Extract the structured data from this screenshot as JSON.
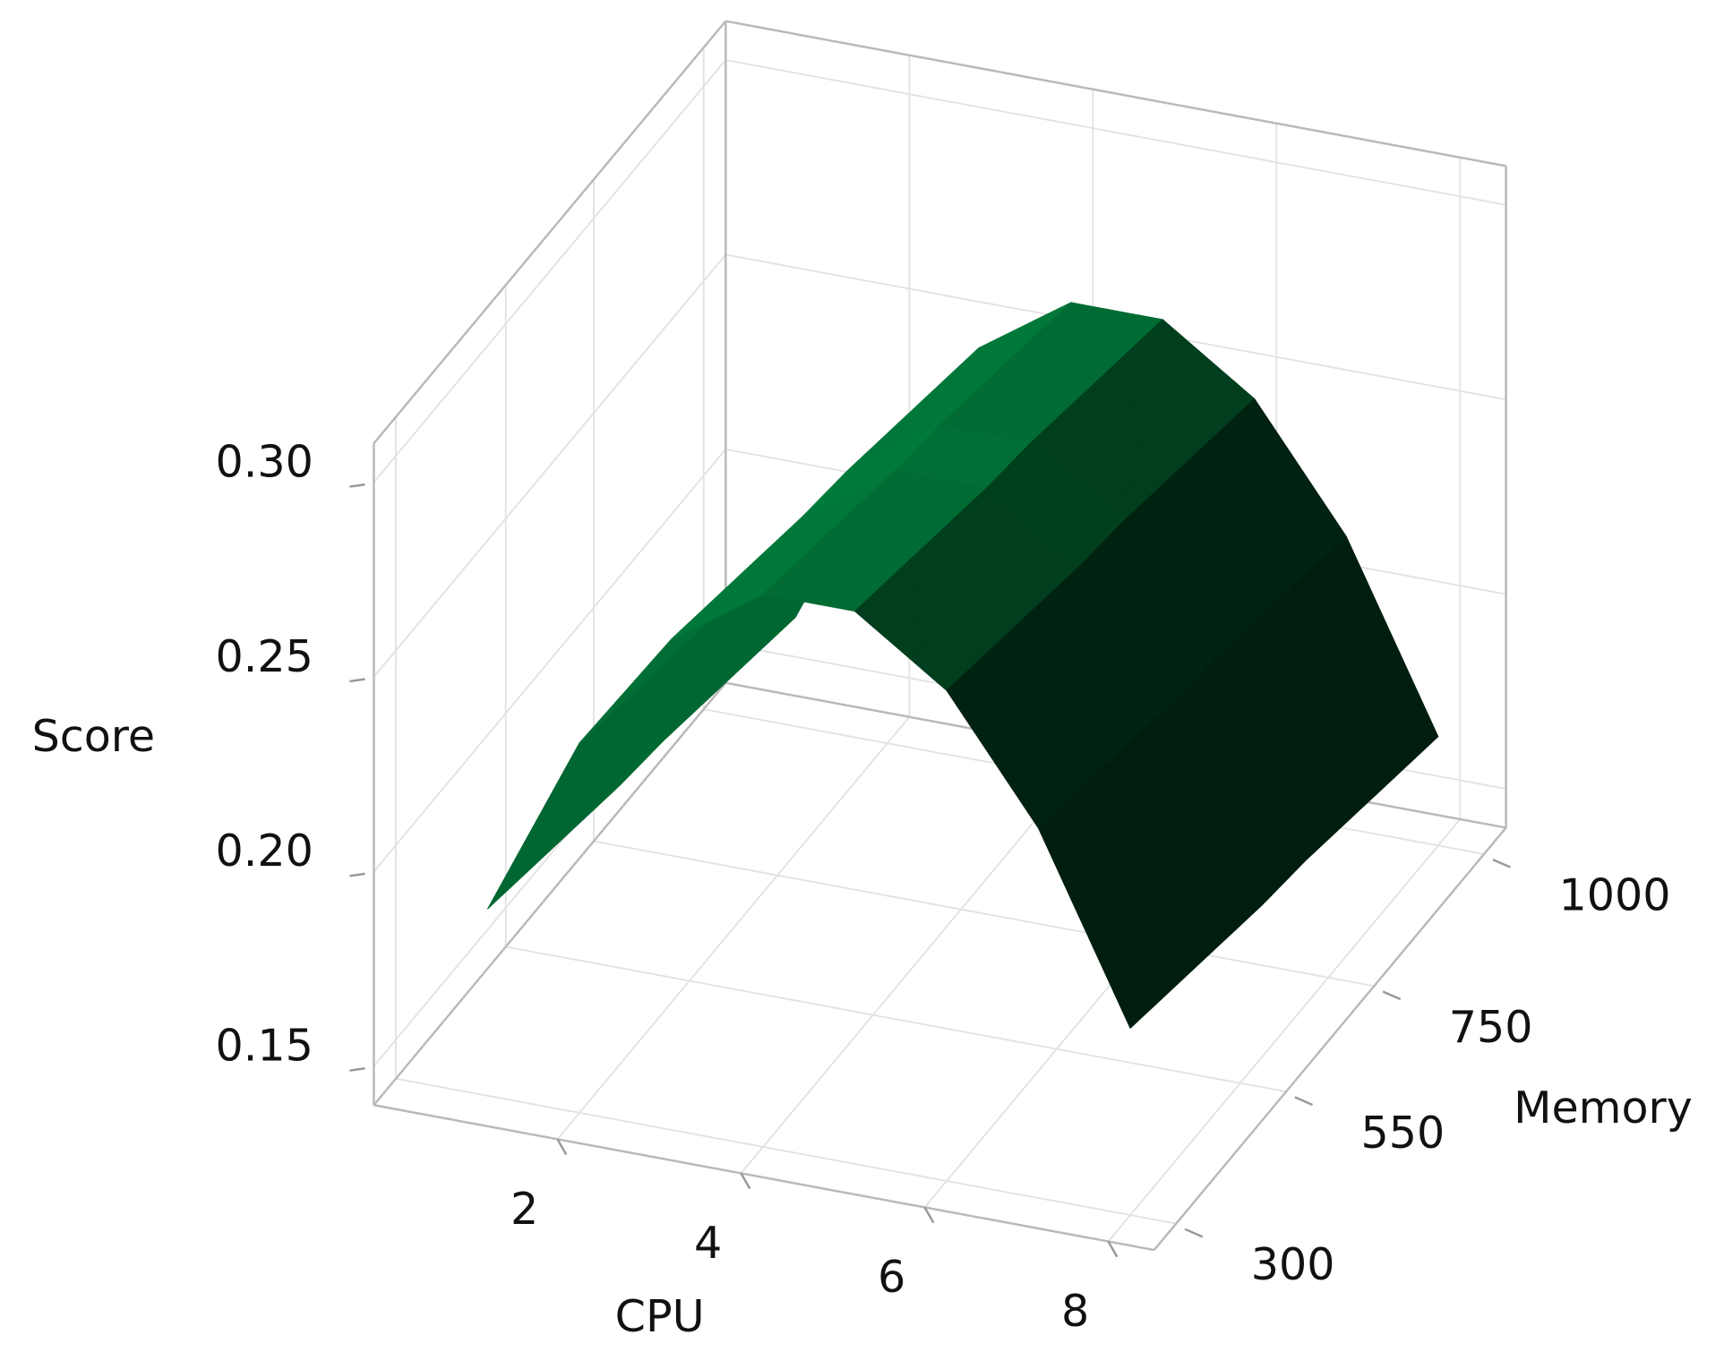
{
  "chart_data": {
    "type": "surface",
    "x_label": "CPU",
    "y_label": "Memory",
    "z_label": "Score",
    "x": [
      1,
      2,
      3,
      4,
      5,
      6,
      7,
      8
    ],
    "y": [
      300,
      400,
      500,
      600,
      700,
      800,
      900,
      1000
    ],
    "z": [
      [
        0.188,
        0.235,
        0.266,
        0.282,
        0.282,
        0.266,
        0.235,
        0.188
      ],
      [
        0.185,
        0.232,
        0.263,
        0.279,
        0.279,
        0.263,
        0.232,
        0.185
      ],
      [
        0.182,
        0.229,
        0.26,
        0.276,
        0.276,
        0.26,
        0.229,
        0.182
      ],
      [
        0.179,
        0.226,
        0.257,
        0.273,
        0.273,
        0.257,
        0.226,
        0.179
      ],
      [
        0.177,
        0.224,
        0.255,
        0.271,
        0.271,
        0.255,
        0.224,
        0.177
      ],
      [
        0.174,
        0.221,
        0.252,
        0.268,
        0.268,
        0.252,
        0.221,
        0.174
      ],
      [
        0.171,
        0.218,
        0.249,
        0.265,
        0.265,
        0.249,
        0.218,
        0.171
      ],
      [
        0.168,
        0.215,
        0.246,
        0.262,
        0.262,
        0.246,
        0.215,
        0.168
      ]
    ],
    "color": "#00783a",
    "xlim": [
      0,
      8.5
    ],
    "ylim": [
      250,
      1050
    ],
    "zlim": [
      0.14,
      0.31
    ],
    "xticks": [
      2,
      4,
      6,
      8
    ],
    "yticks": [
      300,
      550,
      750,
      1000
    ],
    "zticks": [
      0.15,
      {
        "value": 0.2,
        "label": "0.20"
      },
      0.25,
      {
        "value": 0.3,
        "label": "0.30"
      }
    ],
    "grid": true
  }
}
